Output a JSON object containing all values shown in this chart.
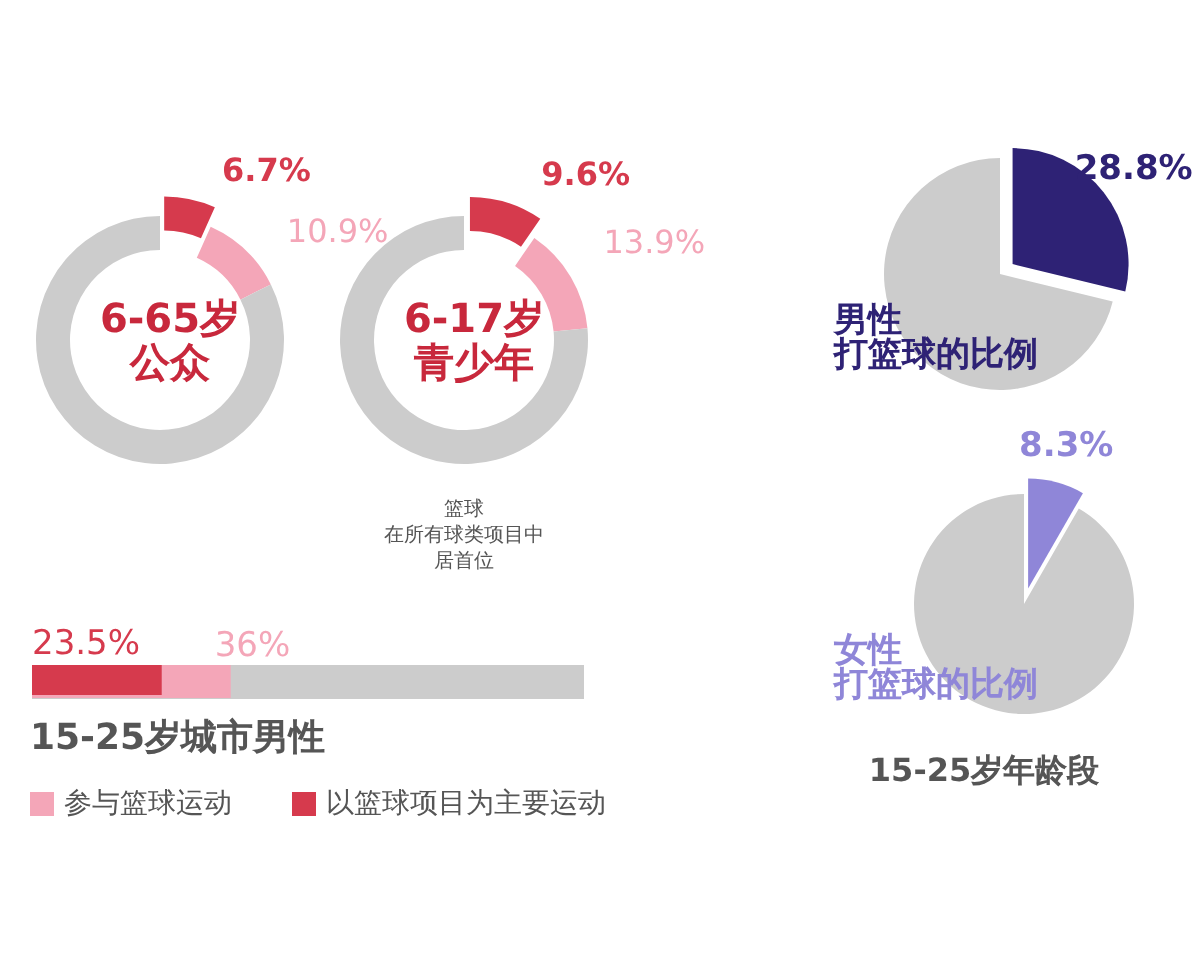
{
  "chart_data": [
    {
      "type": "donut",
      "title": "6-65岁",
      "subtitle": "公众",
      "categories": [
        null,
        null,
        null
      ],
      "values": [
        6.7,
        10.9,
        82.4
      ],
      "colors": [
        "#d63a4d",
        "#f4a6b8",
        "#cccccc"
      ],
      "value_labels": [
        "6.7%",
        "10.9%",
        null
      ]
    },
    {
      "type": "donut",
      "title": "6-17岁",
      "subtitle": "青少年",
      "categories": [
        null,
        null,
        null
      ],
      "values": [
        9.6,
        13.9,
        76.5
      ],
      "colors": [
        "#d63a4d",
        "#f4a6b8",
        "#cccccc"
      ],
      "value_labels": [
        "9.6%",
        "13.9%",
        null
      ],
      "annotations": [
        "篮球",
        "在所有球类项目中",
        "居首位"
      ]
    },
    {
      "type": "bar",
      "orientation": "horizontal",
      "title": "15-25岁城市男性",
      "categories": [
        null
      ],
      "xlim": [
        0,
        100
      ],
      "tick_labels": false,
      "legend": "bottom",
      "series": [
        {
          "name": "参与篮球运动",
          "color": "#f4a6b8",
          "values": [
            36
          ],
          "value_labels": [
            "36%"
          ]
        },
        {
          "name": "以篮球项目为主要运动",
          "color": "#d63a4d",
          "values": [
            23.5
          ],
          "value_labels": [
            "23.5%"
          ]
        }
      ]
    },
    {
      "type": "pie",
      "title": "男性",
      "subtitle": "打篮球的比例",
      "categories": [
        null,
        null
      ],
      "values": [
        28.8,
        71.2
      ],
      "colors": [
        "#2e2275",
        "#cccccc"
      ],
      "value_labels": [
        "28.8%",
        null
      ]
    },
    {
      "type": "pie",
      "title": "女性",
      "subtitle": "打篮球的比例",
      "categories": [
        null,
        null
      ],
      "values": [
        8.3,
        91.7
      ],
      "colors": [
        "#8f86d8",
        "#cccccc"
      ],
      "value_labels": [
        "8.3%",
        null
      ],
      "annotations": [
        "15-25岁年龄段"
      ]
    }
  ]
}
